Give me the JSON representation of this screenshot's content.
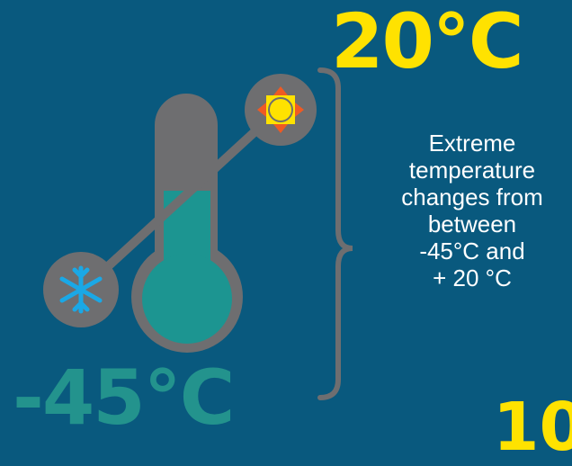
{
  "hot_temp": "20°C",
  "cold_temp": "-45°C",
  "description_lines": [
    "Extreme",
    "temperature",
    "changes from",
    "between",
    "-45°C and",
    "+ 20 °C"
  ],
  "partial_number": "10",
  "colors": {
    "background": "#09597e",
    "hot": "#ffe200",
    "cold": "#23938d",
    "thermometer": "#6e6e70",
    "fluid": "#1c9591",
    "snowflake": "#1aa8e6",
    "sun_ray": "#ef5a23"
  },
  "icons": {
    "hot": "sun-icon",
    "cold": "snowflake-icon",
    "gauge": "thermometer-icon"
  }
}
